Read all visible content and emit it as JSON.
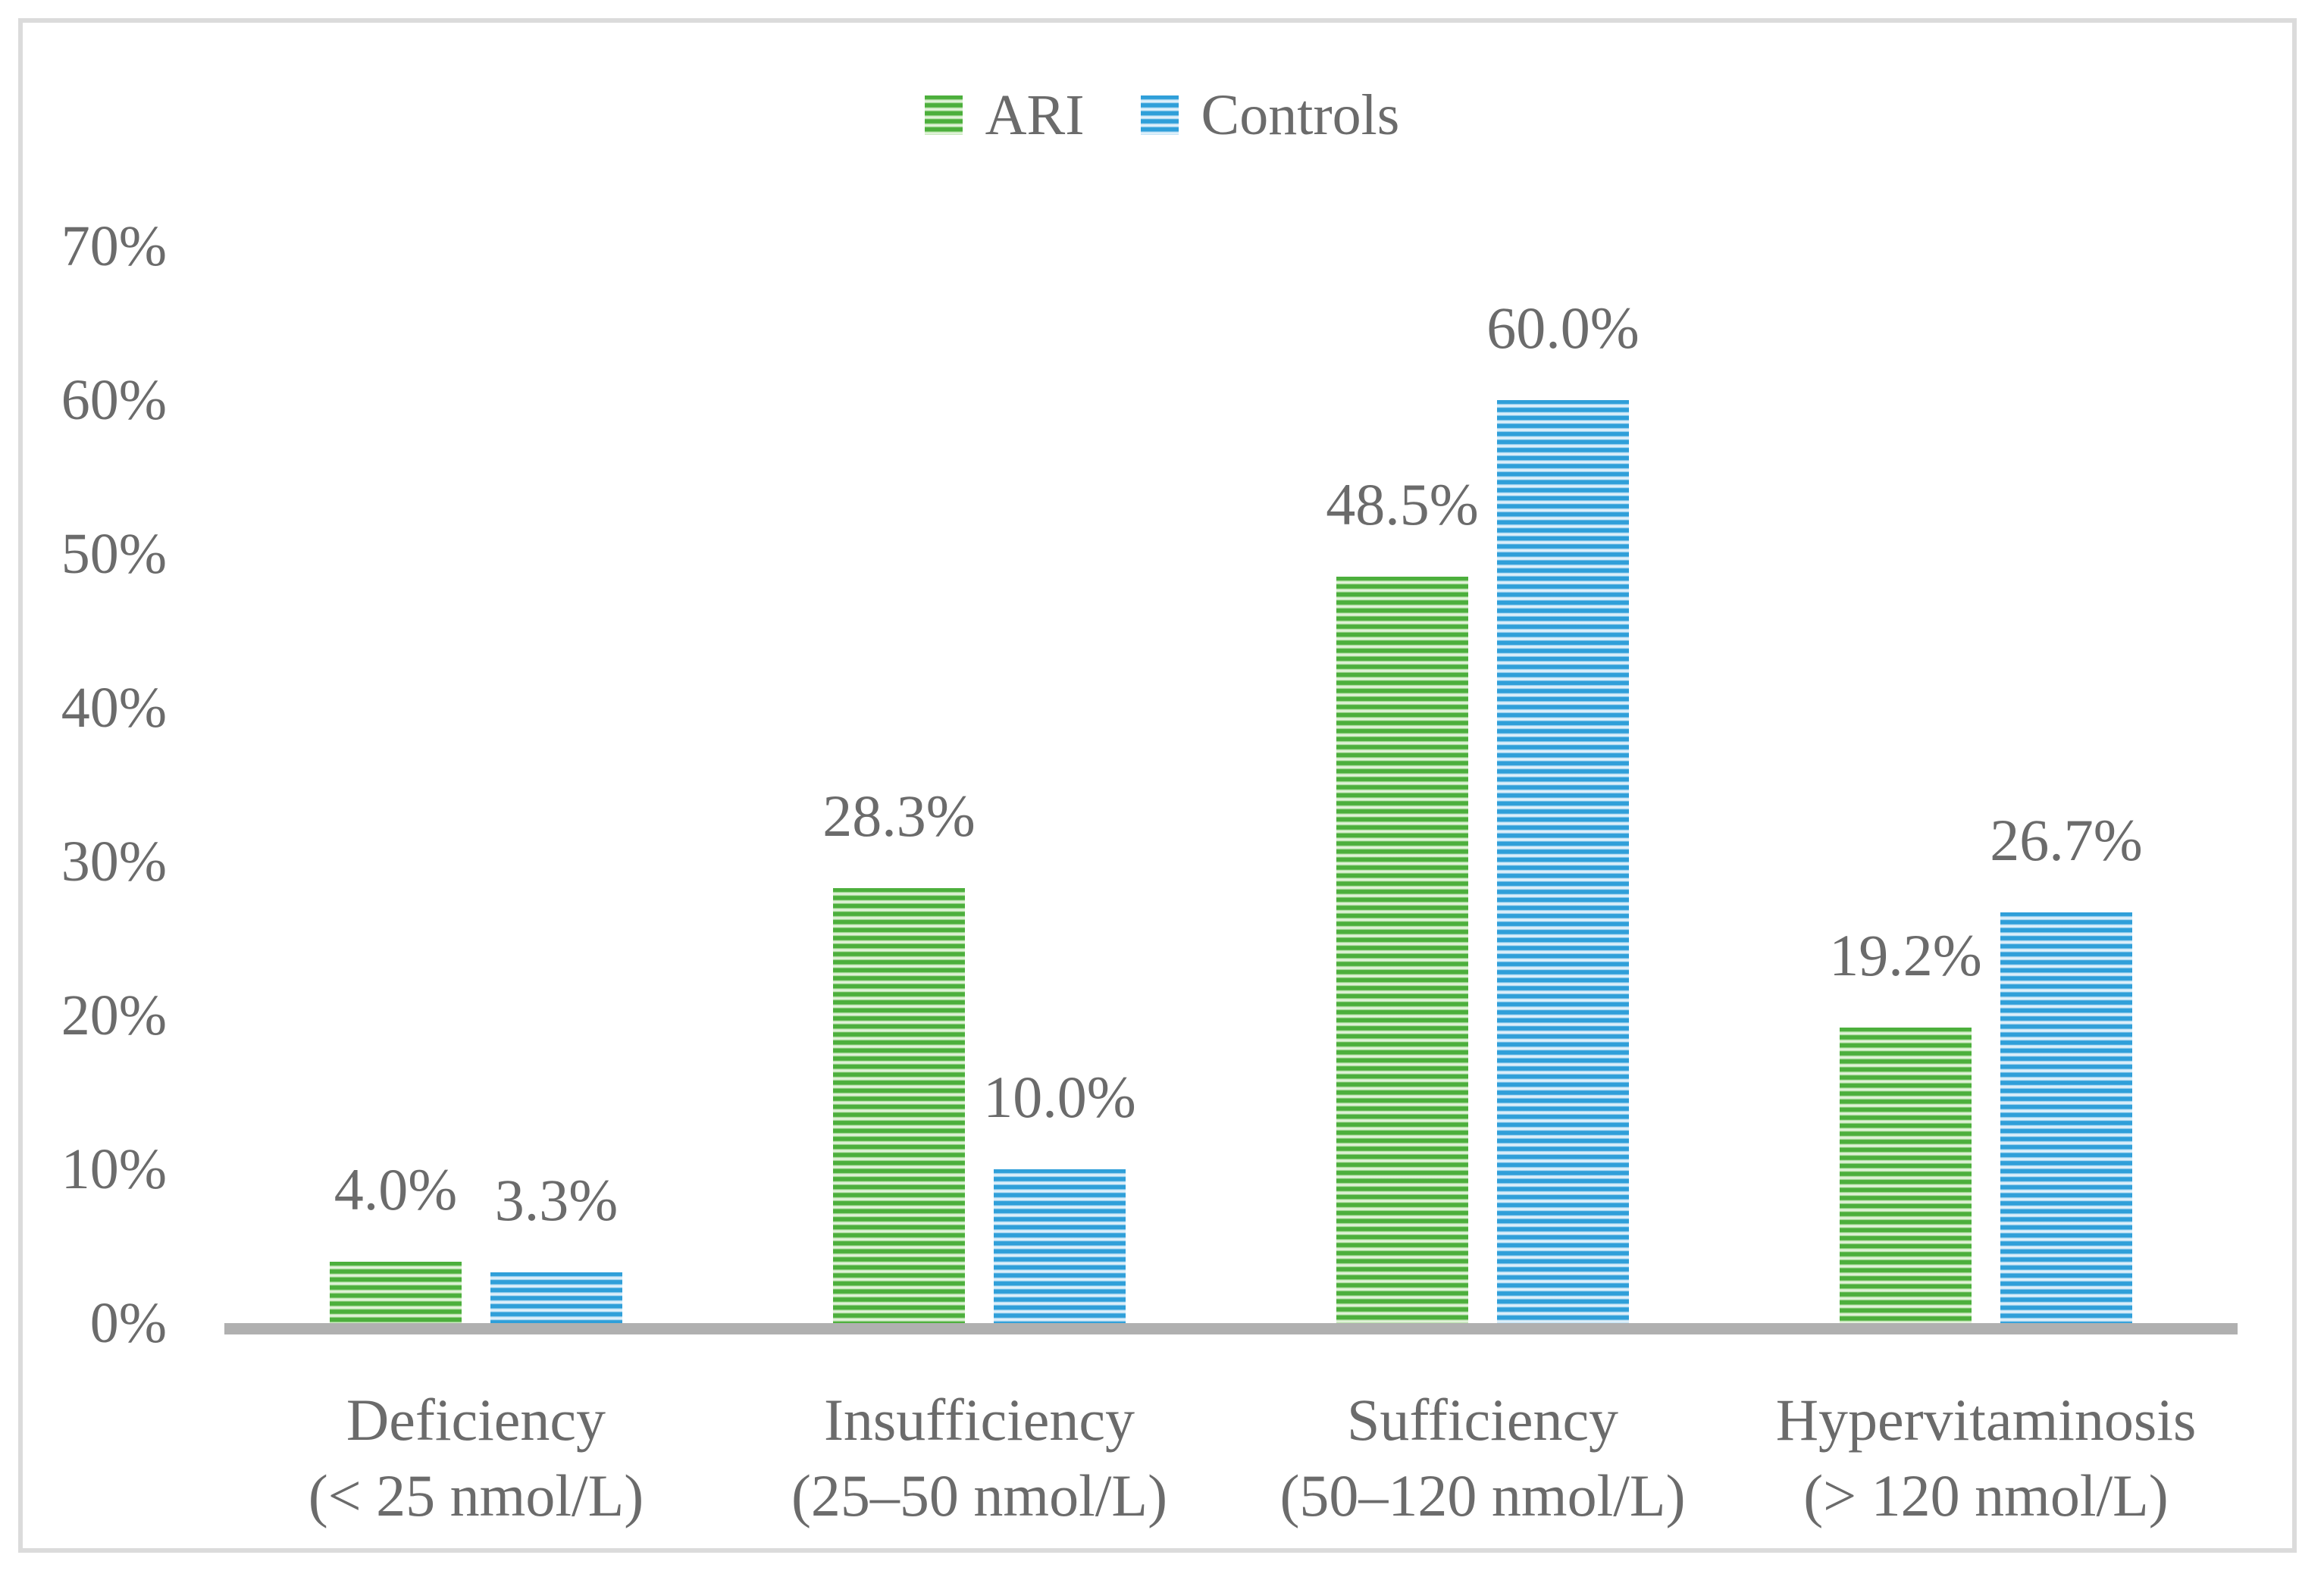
{
  "chart_data": {
    "type": "bar",
    "title": "",
    "xlabel": "",
    "ylabel": "",
    "categories": [
      {
        "name": "Deficiency",
        "range": "(< 25 nmol/L)"
      },
      {
        "name": "Insufficiency",
        "range": "(25–50 nmol/L)"
      },
      {
        "name": "Sufficiency",
        "range": "(50–120 nmol/L)"
      },
      {
        "name": "Hypervitaminosis",
        "range": "(> 120 nmol/L)"
      }
    ],
    "series": [
      {
        "name": "ARI",
        "color": "#4CAF3C",
        "color_light": "#EDF7E6",
        "values": [
          4.0,
          28.3,
          48.5,
          19.2
        ],
        "labels": [
          "4.0%",
          "28.3%",
          "48.5%",
          "19.2%"
        ]
      },
      {
        "name": "Controls",
        "color": "#2F9FD9",
        "color_light": "#EAF5FC",
        "values": [
          3.3,
          10.0,
          60.0,
          26.7
        ],
        "labels": [
          "3.3%",
          "10.0%",
          "60.0%",
          "26.7%"
        ]
      }
    ],
    "y_axis": {
      "min": 0,
      "max": 70,
      "step": 10,
      "ticks": [
        "0%",
        "10%",
        "20%",
        "30%",
        "40%",
        "50%",
        "60%",
        "70%"
      ]
    },
    "legend": {
      "position": "top",
      "entries": [
        "ARI",
        "Controls"
      ]
    },
    "grid": false,
    "bar_pattern": "horizontal-stripes",
    "text_color": "#6B6B6B",
    "axis_line_color": "#B0B0B0",
    "border_color": "#DBDBDB",
    "background": "#FFFFFF"
  }
}
